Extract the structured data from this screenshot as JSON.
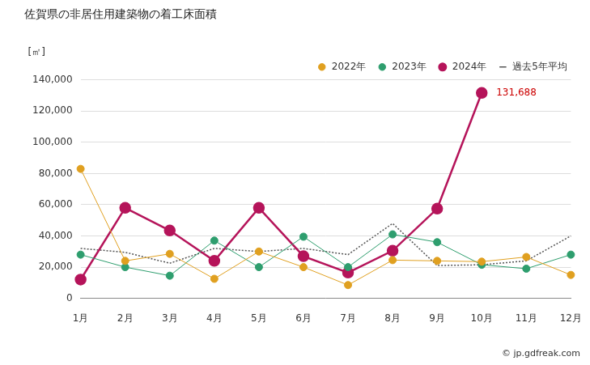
{
  "chart_data": {
    "type": "line",
    "title": "佐賀県の非居住用建築物の着工床面積",
    "y_label": "[㎡]",
    "credit": "© jp.gdfreak.com",
    "categories": [
      "1月",
      "2月",
      "3月",
      "4月",
      "5月",
      "6月",
      "7月",
      "8月",
      "9月",
      "10月",
      "11月",
      "12月"
    ],
    "series": [
      {
        "name": "2022年",
        "color": "#e0a020",
        "marker": "circle",
        "line_style": "solid",
        "values": [
          83000,
          24000,
          28500,
          12500,
          30000,
          20000,
          8500,
          24500,
          24000,
          23500,
          26500,
          15000
        ]
      },
      {
        "name": "2023年",
        "color": "#2e9e6e",
        "marker": "circle",
        "line_style": "solid",
        "values": [
          28000,
          20000,
          14500,
          37000,
          20000,
          39500,
          20000,
          41000,
          36000,
          21500,
          19000,
          28000
        ]
      },
      {
        "name": "2024年",
        "color": "#b5145a",
        "marker": "circle",
        "line_style": "solid",
        "values": [
          12000,
          58000,
          43500,
          24000,
          58000,
          27000,
          16500,
          30500,
          57500,
          131688,
          null,
          null
        ],
        "value_labels": [
          null,
          null,
          null,
          null,
          null,
          null,
          null,
          null,
          null,
          "131,688",
          null,
          null
        ]
      },
      {
        "name": "過去5年平均",
        "color": "#555555",
        "marker": "none",
        "line_style": "dotted",
        "values": [
          32000,
          29500,
          22500,
          32000,
          30000,
          32000,
          28000,
          48000,
          21000,
          21500,
          24000,
          40000
        ]
      }
    ],
    "ylim": [
      0,
      140000
    ],
    "yticks": [
      0,
      {
        "value": 20000,
        "label": "20,000"
      },
      {
        "value": 40000,
        "label": "40,000"
      },
      {
        "value": 60000,
        "label": "60,000"
      },
      {
        "value": 80000,
        "label": "80,000"
      },
      {
        "value": 100000,
        "label": "100,000"
      },
      {
        "value": 120000,
        "label": "120,000"
      },
      {
        "value": 140000,
        "label": "140,000"
      }
    ],
    "grid": true,
    "legend": "top"
  }
}
